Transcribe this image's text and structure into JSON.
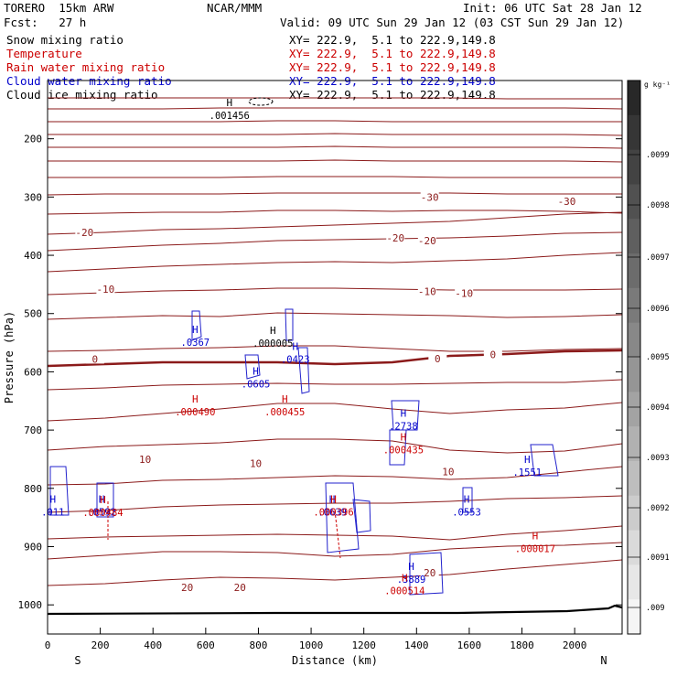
{
  "header": {
    "model": "TORERO  15km ARW",
    "institution": "NCAR/MMM",
    "init": "Init: 06 UTC Sat 28 Jan 12",
    "fcst": "Fcst:   27 h",
    "valid": "Valid: 09 UTC Sun 29 Jan 12 (03 CST Sun 29 Jan 12)"
  },
  "legend": [
    {
      "name": "Snow mixing ratio",
      "xy": "XY= 222.9,  5.1 to 222.9,149.8",
      "color": "#000000"
    },
    {
      "name": "Temperature",
      "xy": "XY= 222.9,  5.1 to 222.9,149.8",
      "color": "#cc0000"
    },
    {
      "name": "Rain water mixing ratio",
      "xy": "XY= 222.9,  5.1 to 222.9,149.8",
      "color": "#cc0000"
    },
    {
      "name": "Cloud water mixing ratio",
      "xy": "XY= 222.9,  5.1 to 222.9,149.8",
      "color": "#0000cc"
    },
    {
      "name": "Cloud ice mixing ratio",
      "xy": "XY= 222.9,  5.1 to 222.9,149.8",
      "color": "#000000"
    }
  ],
  "chart_data": {
    "type": "cross-section contour",
    "xlabel": "Distance (km)",
    "ylabel": "Pressure (hPa)",
    "xlim": [
      0,
      2180
    ],
    "ylim": [
      1050,
      100
    ],
    "x_ticks": [
      0,
      200,
      400,
      600,
      800,
      1000,
      1200,
      1400,
      1600,
      1800,
      2000
    ],
    "y_ticks": [
      200,
      300,
      400,
      500,
      600,
      700,
      800,
      900,
      1000
    ],
    "x_end_labels": {
      "left": "S",
      "right": "N"
    },
    "colorbar": {
      "unit": "g kg⁻¹",
      "labels": [
        ".0099",
        ".0098",
        ".0097",
        ".0096",
        ".0095",
        ".0094",
        ".0093",
        ".0092",
        ".0091",
        ".009"
      ]
    },
    "temperature_isotherm_labels": [
      {
        "text": "-30",
        "x": 1450,
        "p": 300
      },
      {
        "text": "-30",
        "x": 1970,
        "p": 307
      },
      {
        "text": "-20",
        "x": 140,
        "p": 361
      },
      {
        "text": "-20",
        "x": 1320,
        "p": 370
      },
      {
        "text": "-20",
        "x": 1440,
        "p": 375
      },
      {
        "text": "-10",
        "x": 220,
        "p": 458
      },
      {
        "text": "-10",
        "x": 1440,
        "p": 462
      },
      {
        "text": "-10",
        "x": 1580,
        "p": 465
      },
      {
        "text": "0",
        "x": 180,
        "p": 578
      },
      {
        "text": "0",
        "x": 1480,
        "p": 577
      },
      {
        "text": "0",
        "x": 1690,
        "p": 570
      },
      {
        "text": "10",
        "x": 370,
        "p": 750
      },
      {
        "text": "10",
        "x": 790,
        "p": 757
      },
      {
        "text": "10",
        "x": 1520,
        "p": 771
      },
      {
        "text": "20",
        "x": 530,
        "p": 970
      },
      {
        "text": "20",
        "x": 730,
        "p": 970
      },
      {
        "text": "20",
        "x": 1450,
        "p": 945
      }
    ],
    "maxima_labels": [
      {
        "text": ".001456",
        "x": 690,
        "p": 161,
        "color": "#000000"
      },
      {
        "text": ".000005",
        "x": 855,
        "p": 552,
        "color": "#000000"
      },
      {
        "text": ".0367",
        "x": 560,
        "p": 551,
        "color": "#0000cc"
      },
      {
        "text": ".0423",
        "x": 940,
        "p": 580,
        "color": "#0000cc"
      },
      {
        "text": ".0605",
        "x": 790,
        "p": 622,
        "color": "#0000cc"
      },
      {
        "text": ".000490",
        "x": 560,
        "p": 670,
        "color": "#cc0000"
      },
      {
        "text": ".000455",
        "x": 900,
        "p": 670,
        "color": "#cc0000"
      },
      {
        "text": ".2738",
        "x": 1350,
        "p": 694,
        "color": "#0000cc"
      },
      {
        "text": ".000435",
        "x": 1350,
        "p": 735,
        "color": "#cc0000"
      },
      {
        "text": ".1551",
        "x": 1820,
        "p": 774,
        "color": "#0000cc"
      },
      {
        "text": ".0553",
        "x": 1590,
        "p": 842,
        "color": "#0000cc"
      },
      {
        "text": ".011",
        "x": 20,
        "p": 842,
        "color": "#0000cc"
      },
      {
        "text": ".0592",
        "x": 205,
        "p": 842,
        "color": "#0000cc"
      },
      {
        "text": ".000484",
        "x": 210,
        "p": 843,
        "color": "#cc0000"
      },
      {
        "text": ".0639",
        "x": 1080,
        "p": 842,
        "color": "#0000cc"
      },
      {
        "text": ".000396",
        "x": 1085,
        "p": 842,
        "color": "#cc0000"
      },
      {
        "text": ".000017",
        "x": 1850,
        "p": 905,
        "color": "#cc0000"
      },
      {
        "text": ".3889",
        "x": 1380,
        "p": 957,
        "color": "#0000cc"
      },
      {
        "text": ".000514",
        "x": 1355,
        "p": 977,
        "color": "#cc0000"
      }
    ]
  }
}
